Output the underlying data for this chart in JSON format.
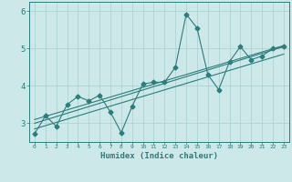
{
  "xlabel": "Humidex (Indice chaleur)",
  "ylabel": "",
  "bg_color": "#cce8e8",
  "line_color": "#2d7d7d",
  "grid_color": "#aacfcf",
  "xlim": [
    -0.5,
    23.5
  ],
  "ylim": [
    2.5,
    6.25
  ],
  "xticks": [
    0,
    1,
    2,
    3,
    4,
    5,
    6,
    7,
    8,
    9,
    10,
    11,
    12,
    13,
    14,
    15,
    16,
    17,
    18,
    19,
    20,
    21,
    22,
    23
  ],
  "yticks": [
    3,
    4,
    5,
    6
  ],
  "line1_x": [
    0,
    1,
    2,
    3,
    4,
    5,
    6,
    7,
    8,
    9,
    10,
    11,
    12,
    13,
    14,
    15,
    16,
    17,
    18,
    19,
    20,
    21,
    22,
    23
  ],
  "line1_y": [
    2.72,
    3.2,
    2.92,
    3.5,
    3.72,
    3.6,
    3.75,
    3.3,
    2.75,
    3.45,
    4.05,
    4.1,
    4.1,
    4.5,
    5.92,
    5.55,
    4.3,
    3.9,
    4.65,
    5.05,
    4.7,
    4.8,
    5.0,
    5.05
  ],
  "line2_x": [
    0,
    23
  ],
  "line2_y": [
    3.0,
    5.05
  ],
  "line3_x": [
    0,
    23
  ],
  "line3_y": [
    2.85,
    4.85
  ],
  "line4_x": [
    0,
    23
  ],
  "line4_y": [
    3.1,
    5.08
  ]
}
